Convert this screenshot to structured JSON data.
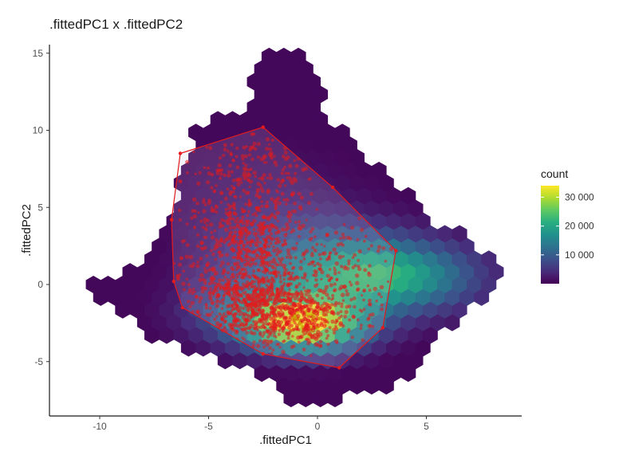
{
  "chart_data": {
    "type": "hexbin",
    "title": ".fittedPC1 x .fittedPC2",
    "xlabel": ".fittedPC1",
    "ylabel": ".fittedPC2",
    "xlim": [
      -12.5,
      9.2
    ],
    "ylim": [
      -8.5,
      16.3
    ],
    "x_ticks": [
      -10,
      -5,
      0,
      5
    ],
    "x_tick_labels": [
      "-10",
      "-5",
      "0",
      "5"
    ],
    "y_ticks": [
      -5,
      0,
      5,
      10,
      15
    ],
    "y_tick_labels": [
      "-5",
      "0",
      "5",
      "10",
      "15"
    ],
    "grid": false,
    "fill_scale": "viridis",
    "legend": {
      "title": "count",
      "placement": "right",
      "min": 0,
      "max": 34000,
      "breaks": [
        10000,
        20000,
        30000
      ],
      "break_labels": [
        "10 000",
        "20 000",
        "30 000"
      ]
    },
    "density_components": [
      {
        "x": 3.8,
        "y": 0.5,
        "sx": 2.6,
        "sy": 1.6,
        "weight": 16000
      },
      {
        "x": -0.5,
        "y": -2.6,
        "sx": 1.9,
        "sy": 1.2,
        "weight": 30000
      },
      {
        "x": 0.5,
        "y": 1.0,
        "sx": 2.8,
        "sy": 2.0,
        "weight": 12000
      },
      {
        "x": -3.0,
        "y": -1.8,
        "sx": 2.2,
        "sy": 1.4,
        "weight": 9000
      },
      {
        "x": -2.0,
        "y": 4.0,
        "sx": 3.0,
        "sy": 3.5,
        "weight": 2500
      }
    ],
    "hull_overlay": {
      "color": "#e41a1c",
      "vertices": [
        [
          -2.5,
          10.2
        ],
        [
          0.7,
          6.3
        ],
        [
          3.6,
          2.2
        ],
        [
          3.0,
          -2.8
        ],
        [
          1.0,
          -5.4
        ],
        [
          -2.5,
          -4.5
        ],
        [
          -6.2,
          -1.5
        ],
        [
          -6.6,
          0.2
        ],
        [
          -6.7,
          4.2
        ],
        [
          -6.3,
          8.5
        ]
      ]
    },
    "points_overlay": {
      "color": "#e41a1c",
      "highlight_color": "#c8b400",
      "clusters": [
        {
          "x": -2.7,
          "y": -1.3,
          "sx": 1.3,
          "sy": 1.3,
          "n": 750
        },
        {
          "x": -0.6,
          "y": -2.4,
          "sx": 0.9,
          "sy": 0.9,
          "n": 300
        },
        {
          "x": -3.0,
          "y": 3.0,
          "sx": 1.1,
          "sy": 2.2,
          "n": 450
        },
        {
          "x": -2.6,
          "y": 7.5,
          "sx": 1.4,
          "sy": 1.6,
          "n": 160
        },
        {
          "x": 0.4,
          "y": 1.5,
          "sx": 1.6,
          "sy": 1.6,
          "n": 170
        },
        {
          "x": -5.0,
          "y": 2.0,
          "sx": 0.8,
          "sy": 2.6,
          "n": 120
        },
        {
          "x": 1.8,
          "y": -1.3,
          "sx": 1.0,
          "sy": 1.2,
          "n": 70
        }
      ]
    }
  }
}
